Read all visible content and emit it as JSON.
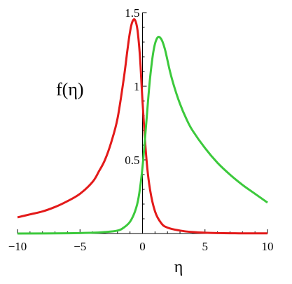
{
  "chart_data": {
    "type": "line",
    "title": "",
    "xlabel": "η",
    "ylabel": "f(η)",
    "xlim": [
      -10,
      10
    ],
    "ylim": [
      0,
      1.5
    ],
    "x_ticks": [
      -10,
      -5,
      0,
      5,
      10
    ],
    "x_tick_labels": [
      "−10",
      "−5",
      "0",
      "5",
      "10"
    ],
    "y_ticks": [
      0.5,
      1,
      1.5
    ],
    "y_tick_labels": [
      "0.5",
      "1",
      "1.5"
    ],
    "grid": false,
    "legend": "none",
    "series": [
      {
        "color": "#e31a1a",
        "x": [
          -10,
          -9,
          -8,
          -7,
          -6,
          -5,
          -4,
          -3.5,
          -3,
          -2.5,
          -2,
          -1.5,
          -1.2,
          -1,
          -0.8,
          -0.6,
          -0.4,
          -0.2,
          0,
          0.3,
          0.6,
          1,
          1.5,
          2,
          3,
          4,
          5,
          6,
          7,
          8,
          10
        ],
        "y": [
          0.11,
          0.13,
          0.15,
          0.18,
          0.22,
          0.27,
          0.35,
          0.42,
          0.5,
          0.62,
          0.78,
          1.05,
          1.25,
          1.37,
          1.44,
          1.45,
          1.38,
          1.2,
          0.9,
          0.52,
          0.3,
          0.15,
          0.07,
          0.04,
          0.02,
          0.01,
          0.005,
          0.003,
          0.002,
          0.001,
          0.001
        ]
      },
      {
        "color": "#3cc93c",
        "x": [
          -10,
          -6,
          -4,
          -3,
          -2,
          -1.5,
          -1,
          -0.6,
          -0.3,
          0,
          0.3,
          0.6,
          0.9,
          1.2,
          1.5,
          1.8,
          2.2,
          2.6,
          3,
          3.5,
          4,
          5,
          6,
          7,
          8,
          9,
          10
        ],
        "y": [
          0.0,
          0.002,
          0.005,
          0.01,
          0.02,
          0.04,
          0.08,
          0.15,
          0.25,
          0.45,
          0.75,
          1.05,
          1.25,
          1.33,
          1.32,
          1.25,
          1.1,
          0.98,
          0.88,
          0.78,
          0.7,
          0.58,
          0.48,
          0.4,
          0.33,
          0.27,
          0.21
        ]
      }
    ]
  }
}
